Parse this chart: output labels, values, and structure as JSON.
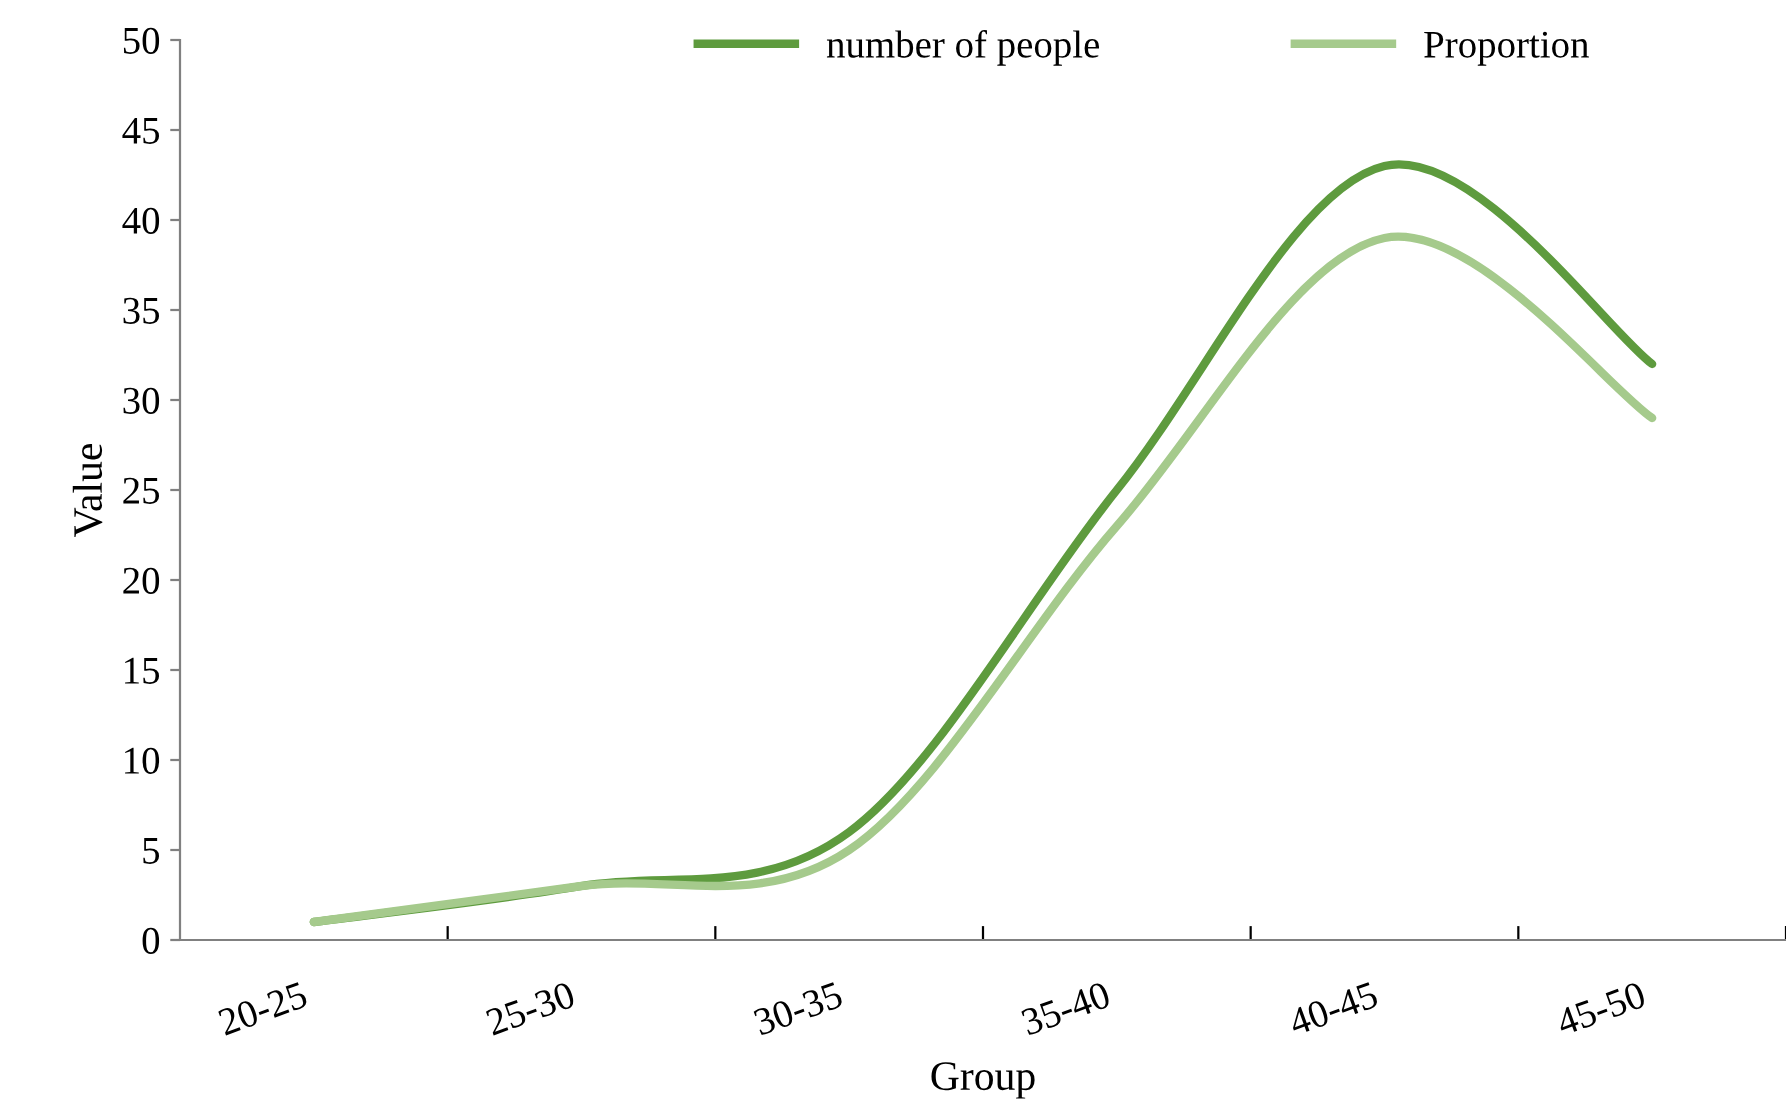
{
  "chart_data": {
    "type": "line",
    "xlabel": "Group",
    "ylabel": "Value",
    "categories": [
      "20-25",
      "25-30",
      "30-35",
      "35-40",
      "40-45",
      "45-50"
    ],
    "series": [
      {
        "name": "number of people",
        "color": "#5e9b3e",
        "values": [
          1,
          3,
          6,
          25,
          43,
          32
        ]
      },
      {
        "name": "Proportion",
        "color": "#a5ca8c",
        "values": [
          1,
          3,
          5,
          23,
          39,
          29
        ]
      }
    ],
    "ylim": [
      0,
      50
    ],
    "yticks": [
      0,
      5,
      10,
      15,
      20,
      25,
      30,
      35,
      40,
      45,
      50
    ],
    "grid": false,
    "legend": "top",
    "marker": "none",
    "line_style": "solid"
  }
}
